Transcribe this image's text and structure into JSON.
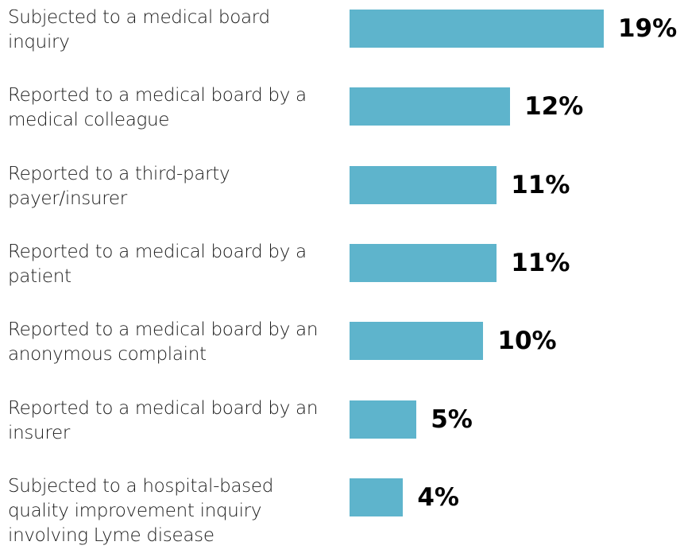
{
  "chart_data": {
    "type": "bar",
    "orientation": "horizontal",
    "categories": [
      "Subjected to a medical board inquiry",
      "Reported to a medical board by a medical colleague",
      "Reported to a third-party payer/insurer",
      "Reported to a medical board by a patient",
      "Reported to a medical board by an anonymous complaint",
      "Reported to a medical board by an insurer",
      "Subjected to a hospital-based quality improvement inquiry involving Lyme disease"
    ],
    "values": [
      19,
      12,
      11,
      11,
      10,
      5,
      4
    ],
    "value_labels": [
      "19%",
      "12%",
      "11%",
      "11%",
      "10%",
      "5%",
      "4%"
    ],
    "color": "#5eb4cc"
  }
}
